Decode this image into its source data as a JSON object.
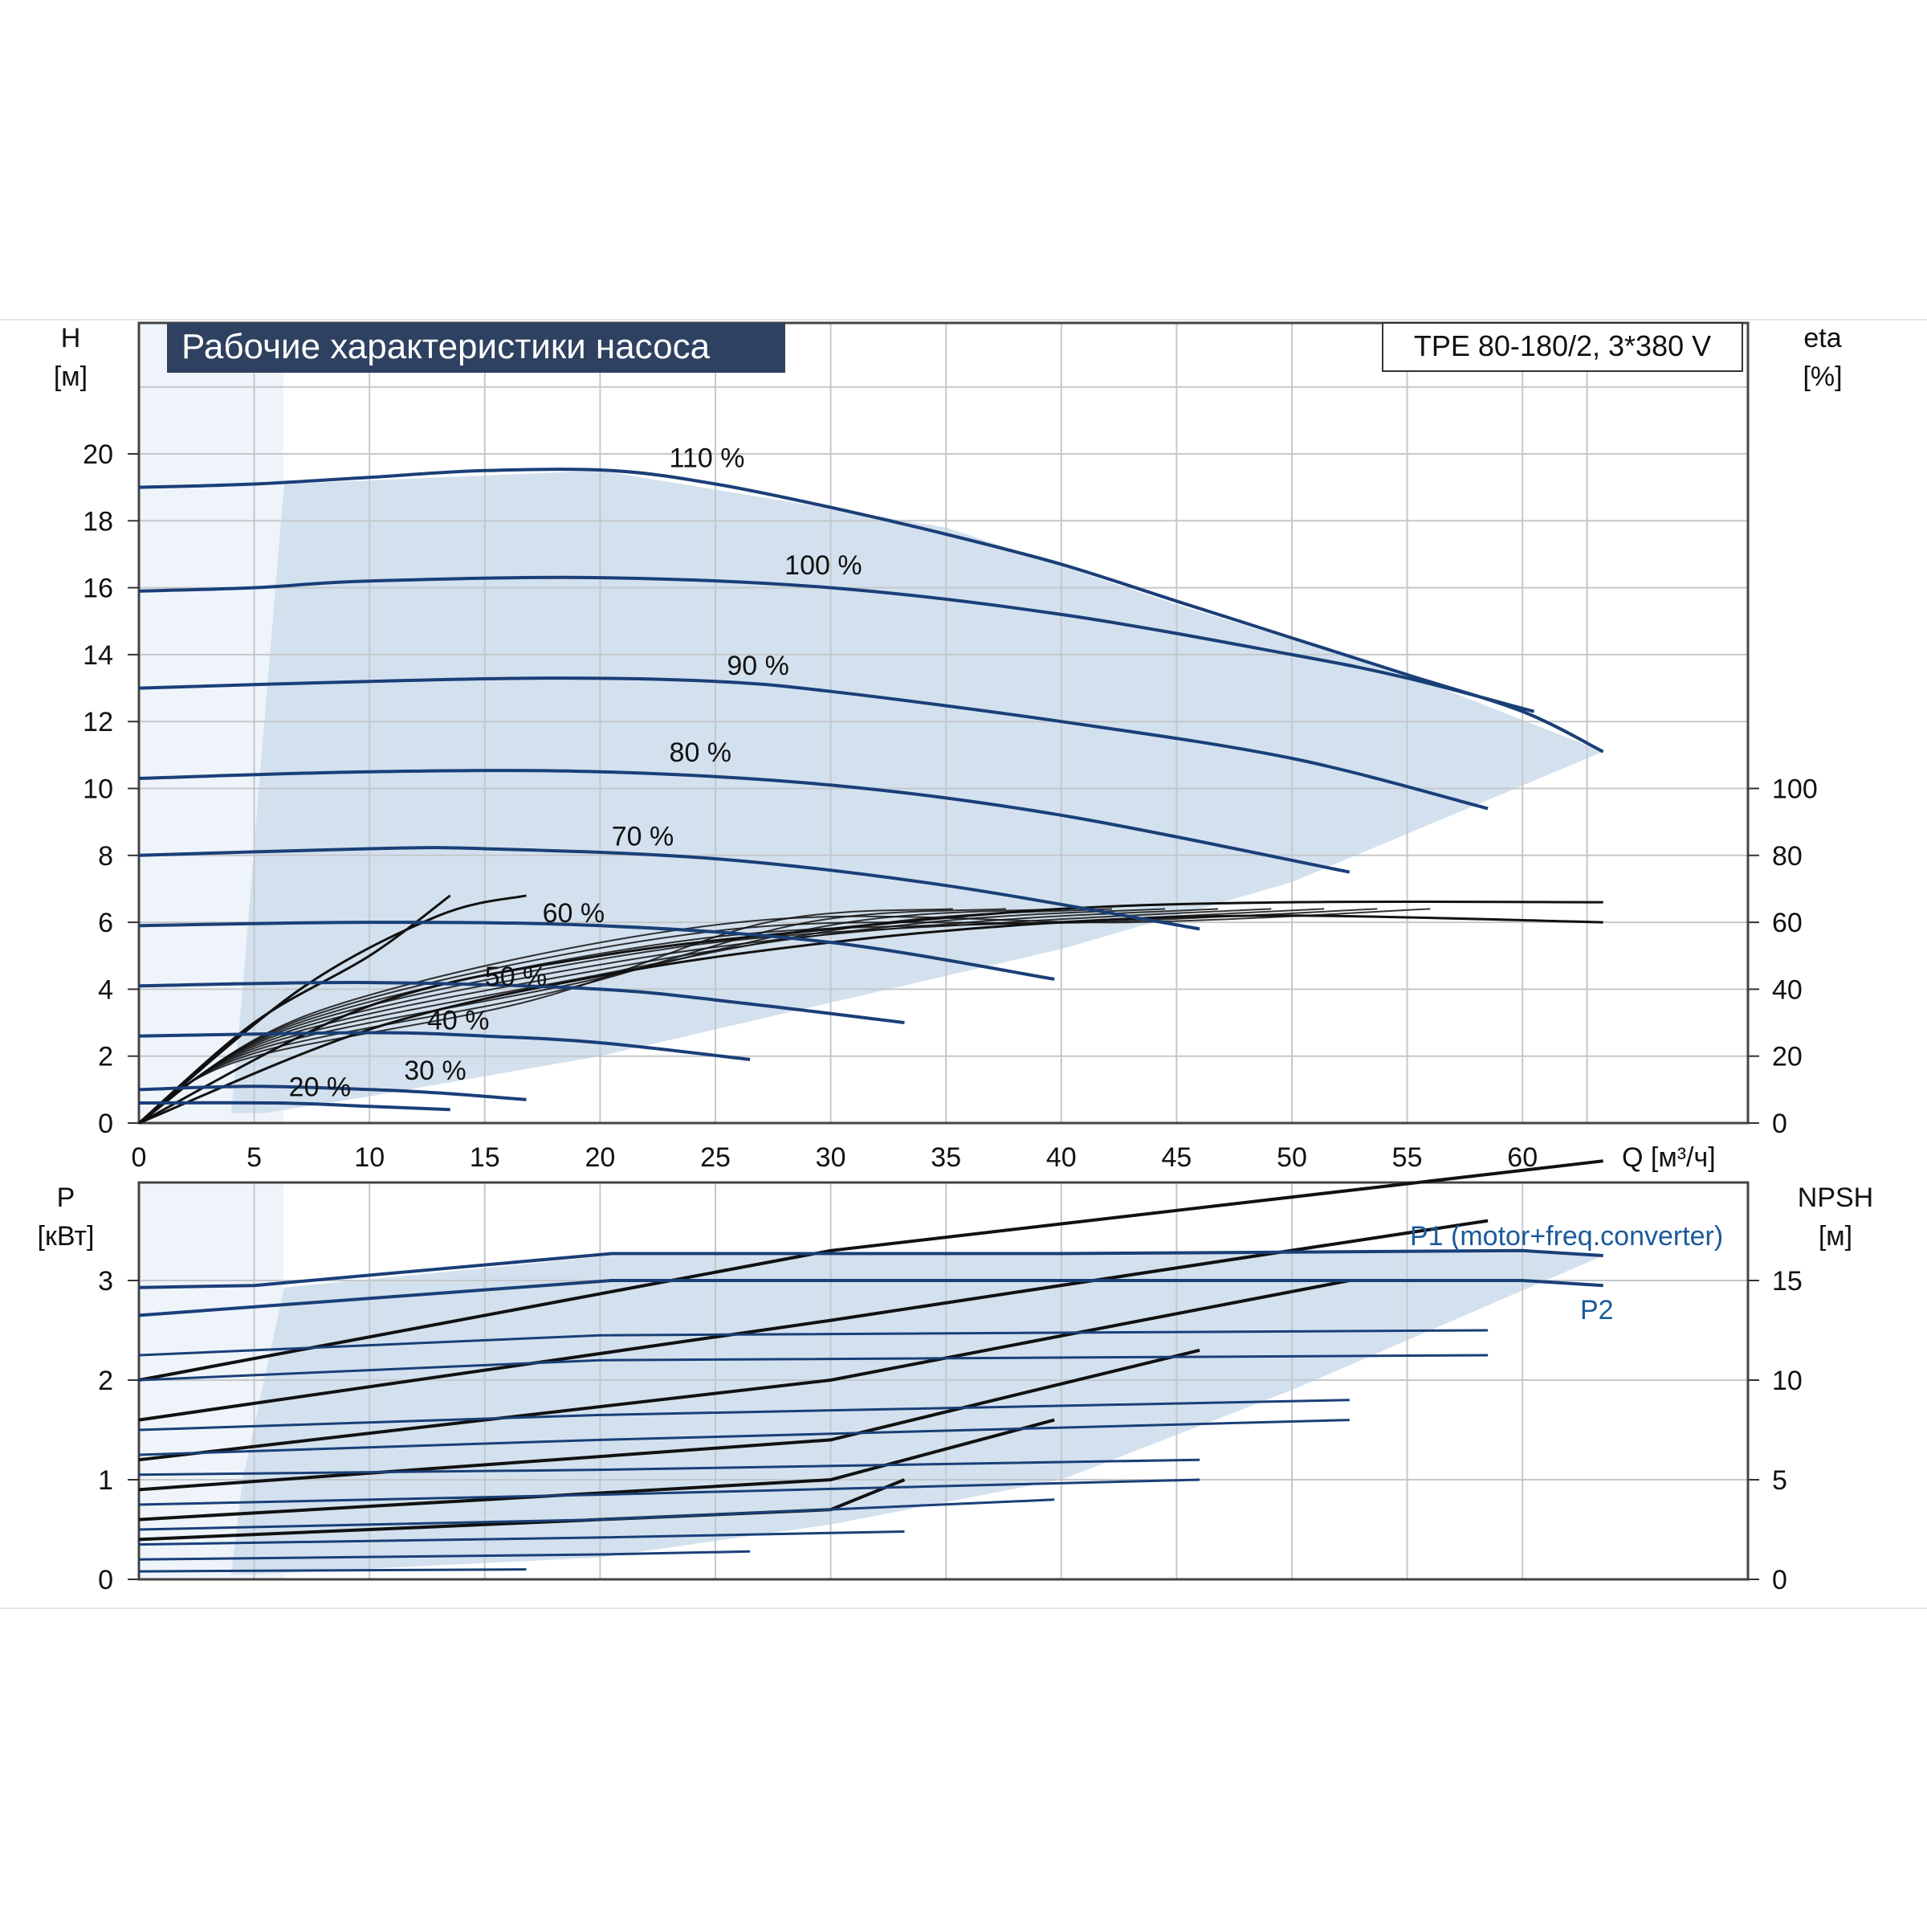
{
  "chart_data": [
    {
      "type": "line",
      "title": "Рабочие характеристики насоса",
      "model_label": "TPE 80-180/2, 3*380 V",
      "y_left_label": "H",
      "y_left_unit": "[м]",
      "y_right_label": "eta",
      "y_right_unit": "[%]",
      "x_label": "Q [м³/ч]",
      "xlim": [
        0,
        70
      ],
      "ylim_left": [
        0,
        24
      ],
      "ylim_right_eta": [
        0,
        100
      ],
      "x_ticks": [
        0,
        5,
        10,
        15,
        20,
        25,
        30,
        35,
        40,
        45,
        50,
        55,
        60
      ],
      "y_left_ticks": [
        0,
        2,
        4,
        6,
        8,
        10,
        12,
        14,
        16,
        18,
        20
      ],
      "y_right_ticks": [
        0,
        20,
        40,
        60,
        80,
        100
      ],
      "grid": true,
      "colors": {
        "curve": "#1a3f78",
        "area": "#d3e1ee",
        "area_light": "#eef4fa",
        "eta": "#111111",
        "title_bg": "#2e4160"
      },
      "operating_area_Q_H": [
        [
          6.3,
          19.1
        ],
        [
          20,
          19.5
        ],
        [
          35,
          17.8
        ],
        [
          45,
          15.5
        ],
        [
          55,
          13.4
        ],
        [
          63.5,
          11.1
        ],
        [
          50,
          7.2
        ],
        [
          40,
          5.2
        ],
        [
          30,
          3.6
        ],
        [
          20,
          2.0
        ],
        [
          10,
          0.8
        ],
        [
          5.5,
          0.3
        ],
        [
          4,
          0.3
        ],
        [
          4.5,
          4.0
        ],
        [
          5.2,
          10
        ],
        [
          6.3,
          19.1
        ]
      ],
      "speed_curves": [
        {
          "name": "110 %",
          "points": [
            [
              0,
              19.0
            ],
            [
              5,
              19.1
            ],
            [
              10,
              19.3
            ],
            [
              15,
              19.5
            ],
            [
              20.5,
              19.5
            ],
            [
              25,
              19.1
            ],
            [
              30,
              18.4
            ],
            [
              35,
              17.6
            ],
            [
              40,
              16.7
            ],
            [
              45,
              15.6
            ],
            [
              50,
              14.5
            ],
            [
              55,
              13.4
            ],
            [
              60,
              12.3
            ],
            [
              63.5,
              11.1
            ]
          ]
        },
        {
          "name": "100 %",
          "points": [
            [
              0,
              15.9
            ],
            [
              5,
              16.0
            ],
            [
              10,
              16.2
            ],
            [
              20,
              16.3
            ],
            [
              30,
              16.0
            ],
            [
              40,
              15.2
            ],
            [
              50,
              14.0
            ],
            [
              55,
              13.3
            ],
            [
              60.5,
              12.3
            ]
          ]
        },
        {
          "name": "90 %",
          "points": [
            [
              0,
              13.0
            ],
            [
              10,
              13.2
            ],
            [
              18,
              13.3
            ],
            [
              25,
              13.2
            ],
            [
              30,
              12.9
            ],
            [
              40,
              12.0
            ],
            [
              50,
              10.9
            ],
            [
              58.5,
              9.4
            ]
          ]
        },
        {
          "name": "80 %",
          "points": [
            [
              0,
              10.3
            ],
            [
              10,
              10.5
            ],
            [
              20,
              10.5
            ],
            [
              30,
              10.1
            ],
            [
              40,
              9.2
            ],
            [
              52.5,
              7.5
            ]
          ]
        },
        {
          "name": "70 %",
          "points": [
            [
              0,
              8.0
            ],
            [
              10,
              8.2
            ],
            [
              15,
              8.2
            ],
            [
              25,
              7.9
            ],
            [
              35,
              7.1
            ],
            [
              46,
              5.8
            ]
          ]
        },
        {
          "name": "60 %",
          "points": [
            [
              0,
              5.9
            ],
            [
              10,
              6.0
            ],
            [
              20,
              5.9
            ],
            [
              30,
              5.4
            ],
            [
              39.7,
              4.3
            ]
          ]
        },
        {
          "name": "50 %",
          "points": [
            [
              0,
              4.1
            ],
            [
              10,
              4.2
            ],
            [
              20,
              4.0
            ],
            [
              26,
              3.6
            ],
            [
              33.2,
              3.0
            ]
          ]
        },
        {
          "name": "40 %",
          "points": [
            [
              0,
              2.6
            ],
            [
              10,
              2.7
            ],
            [
              15,
              2.6
            ],
            [
              20,
              2.4
            ],
            [
              26.5,
              1.9
            ]
          ]
        },
        {
          "name": "30 %",
          "points": [
            [
              0,
              1.0
            ],
            [
              5,
              1.1
            ],
            [
              10,
              1.0
            ],
            [
              13,
              0.9
            ],
            [
              16.8,
              0.7
            ]
          ]
        },
        {
          "name": "20 %",
          "points": [
            [
              0,
              0.6
            ],
            [
              6,
              0.6
            ],
            [
              10,
              0.5
            ],
            [
              13.5,
              0.4
            ]
          ]
        }
      ],
      "eta_curves": [
        {
          "points": [
            [
              0,
              0
            ],
            [
              10,
              35
            ],
            [
              20,
              50
            ],
            [
              30,
              58
            ],
            [
              40,
              64
            ],
            [
              50,
              66
            ],
            [
              63.5,
              66
            ]
          ]
        },
        {
          "points": [
            [
              0,
              0
            ],
            [
              10,
              28
            ],
            [
              20,
              44
            ],
            [
              30,
              54
            ],
            [
              40,
              60
            ],
            [
              50,
              62
            ],
            [
              63.5,
              60
            ]
          ]
        },
        {
          "points": [
            [
              0,
              0
            ],
            [
              5,
              30
            ],
            [
              10,
              50
            ],
            [
              13.5,
              68
            ]
          ]
        },
        {
          "points": [
            [
              0,
              0
            ],
            [
              7,
              40
            ],
            [
              13,
              62
            ],
            [
              16.8,
              68
            ]
          ]
        }
      ]
    },
    {
      "type": "line",
      "y_left_label": "P",
      "y_left_unit": "[кВт]",
      "y_right_label": "NPSH",
      "y_right_unit": "[м]",
      "xlim": [
        0,
        70
      ],
      "ylim_left": [
        0,
        3.9
      ],
      "ylim_right": [
        0,
        19.5
      ],
      "y_left_ticks": [
        0,
        1,
        2,
        3
      ],
      "y_right_ticks": [
        0,
        5,
        10,
        15
      ],
      "grid": true,
      "series_labels": [
        "P1 (motor+freq.converter)",
        "P2"
      ],
      "operating_area_Q_P": [
        [
          6.3,
          2.93
        ],
        [
          20.5,
          3.25
        ],
        [
          40,
          3.25
        ],
        [
          60,
          3.3
        ],
        [
          63.5,
          3.25
        ],
        [
          50,
          1.9
        ],
        [
          40,
          1.0
        ],
        [
          30,
          0.55
        ],
        [
          20,
          0.22
        ],
        [
          5,
          0.05
        ],
        [
          4,
          0.05
        ],
        [
          4.5,
          1.0
        ],
        [
          6.3,
          2.93
        ]
      ],
      "power_curves": [
        {
          "name": "P1 (motor+freq.converter)",
          "points": [
            [
              0,
              2.93
            ],
            [
              5,
              2.95
            ],
            [
              20.5,
              3.27
            ],
            [
              40,
              3.27
            ],
            [
              60,
              3.3
            ],
            [
              63.5,
              3.25
            ]
          ]
        },
        {
          "name": "P2",
          "points": [
            [
              0,
              2.65
            ],
            [
              20.5,
              3.0
            ],
            [
              60,
              3.0
            ],
            [
              63.5,
              2.95
            ]
          ]
        },
        {
          "points": [
            [
              0,
              2.25
            ],
            [
              20,
              2.45
            ],
            [
              58.5,
              2.5
            ]
          ]
        },
        {
          "points": [
            [
              0,
              2.0
            ],
            [
              20,
              2.2
            ],
            [
              58.5,
              2.25
            ]
          ]
        },
        {
          "points": [
            [
              0,
              1.5
            ],
            [
              20,
              1.65
            ],
            [
              52.5,
              1.8
            ]
          ]
        },
        {
          "points": [
            [
              0,
              1.25
            ],
            [
              20,
              1.4
            ],
            [
              52.5,
              1.6
            ]
          ]
        },
        {
          "points": [
            [
              0,
              1.05
            ],
            [
              20,
              1.1
            ],
            [
              46,
              1.2
            ]
          ]
        },
        {
          "points": [
            [
              0,
              0.75
            ],
            [
              20,
              0.85
            ],
            [
              46,
              1.0
            ]
          ]
        },
        {
          "points": [
            [
              0,
              0.5
            ],
            [
              20,
              0.6
            ],
            [
              39.7,
              0.8
            ]
          ]
        },
        {
          "points": [
            [
              0,
              0.35
            ],
            [
              20,
              0.42
            ],
            [
              33.2,
              0.48
            ]
          ]
        },
        {
          "points": [
            [
              0,
              0.2
            ],
            [
              20,
              0.25
            ],
            [
              26.5,
              0.28
            ]
          ]
        },
        {
          "points": [
            [
              0,
              0.08
            ],
            [
              16.8,
              0.1
            ]
          ]
        }
      ],
      "npsh_curves": [
        {
          "points": [
            [
              0,
              2.0
            ],
            [
              30,
              3.3
            ],
            [
              63.5,
              4.2
            ]
          ]
        },
        {
          "points": [
            [
              0,
              1.6
            ],
            [
              30,
              2.6
            ],
            [
              58.5,
              3.6
            ]
          ]
        },
        {
          "points": [
            [
              0,
              1.2
            ],
            [
              30,
              2.0
            ],
            [
              52.5,
              3.0
            ]
          ]
        },
        {
          "points": [
            [
              0,
              0.9
            ],
            [
              30,
              1.4
            ],
            [
              46,
              2.3
            ]
          ]
        },
        {
          "points": [
            [
              0,
              0.6
            ],
            [
              30,
              1.0
            ],
            [
              39.7,
              1.6
            ]
          ]
        },
        {
          "points": [
            [
              0,
              0.4
            ],
            [
              30,
              0.7
            ],
            [
              33.2,
              1.0
            ]
          ]
        }
      ]
    }
  ]
}
